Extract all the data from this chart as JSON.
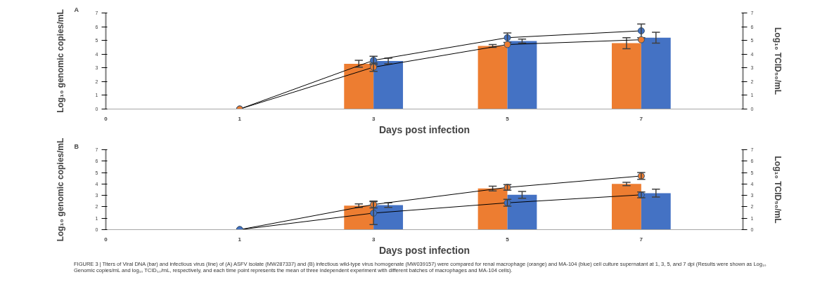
{
  "chart_data": [
    {
      "type": "bar",
      "title": "A",
      "xlabel": "Days post infection",
      "ylabel": "Log₁₀ genomic copies/mL",
      "y2label": "Log₁₀ TCID₅₀/mL",
      "categories": [
        "0",
        "1",
        "3",
        "5",
        "7"
      ],
      "ylim": [
        0,
        7
      ],
      "yticks": [
        0,
        1,
        2,
        3,
        4,
        5,
        6,
        7
      ],
      "y2lim": [
        0,
        7
      ],
      "y2ticks": [
        0,
        1,
        2,
        3,
        4,
        5,
        6,
        7
      ],
      "marker": "circle",
      "series": [
        {
          "color": "#ed7d31",
          "values": [
            null,
            null,
            3.3,
            4.6,
            4.8
          ],
          "errors": [
            null,
            null,
            0.25,
            0.1,
            0.4
          ]
        },
        {
          "color": "#4472c4",
          "values": [
            null,
            null,
            3.5,
            4.95,
            5.2
          ],
          "errors": [
            null,
            null,
            0.2,
            0.15,
            0.4
          ]
        },
        {
          "type": "line",
          "color": "#4472c4",
          "values": [
            null,
            0,
            3.55,
            5.2,
            5.7
          ],
          "errors": [
            null,
            null,
            0.3,
            0.35,
            0.5
          ]
        },
        {
          "type": "line",
          "color": "#ed7d31",
          "values": [
            null,
            0,
            3.05,
            4.7,
            5.05
          ],
          "errors": [
            null,
            null,
            0.3,
            null,
            null
          ]
        }
      ]
    },
    {
      "type": "bar",
      "title": "B",
      "xlabel": "Days post infection",
      "ylabel": "Log₁₀ genomic copies/mL",
      "y2label": "Log₁₀ TCID₅₀/mL",
      "categories": [
        "0",
        "1",
        "3",
        "5",
        "7"
      ],
      "ylim": [
        0,
        7
      ],
      "yticks": [
        0,
        1,
        2,
        3,
        4,
        5,
        6,
        7
      ],
      "y2lim": [
        0,
        7
      ],
      "y2ticks": [
        0,
        1,
        2,
        3,
        4,
        5,
        6,
        7
      ],
      "marker": "circle",
      "series": [
        {
          "color": "#ed7d31",
          "values": [
            null,
            null,
            2.1,
            3.6,
            4.0
          ],
          "errors": [
            null,
            null,
            0.15,
            0.2,
            0.15
          ]
        },
        {
          "color": "#4472c4",
          "values": [
            null,
            null,
            2.15,
            3.05,
            3.2
          ],
          "errors": [
            null,
            null,
            0.2,
            0.3,
            0.35
          ]
        },
        {
          "type": "line",
          "color": "#ed7d31",
          "values": [
            null,
            0,
            2.2,
            3.7,
            4.7
          ],
          "errors": [
            null,
            null,
            0.3,
            0.25,
            0.3
          ]
        },
        {
          "type": "line",
          "color": "#4472c4",
          "values": [
            null,
            0,
            1.45,
            2.35,
            3.05
          ],
          "errors": [
            null,
            null,
            1.0,
            0.3,
            0.25
          ]
        }
      ],
      "annotations": [
        "FIGURE 3 | Titers of Viral DNA (bar) and infectious virus (line) of (A) ASFV isolate (MW287337) and (B) infectious wild-type virus homogenate (MW039157) were compared for renal macrophage (orange) and MA-104 (blue) cell culture supernatant at 1, 3, 5, and 7 dpi (Results were shown as Log₁₀ Genomic copies/mL and log₁₀ TCID₅₀/mL, respectively, and each time point represents the mean of three independent experiment with different batches of macrophages and MA-104 cells)."
      ]
    }
  ]
}
